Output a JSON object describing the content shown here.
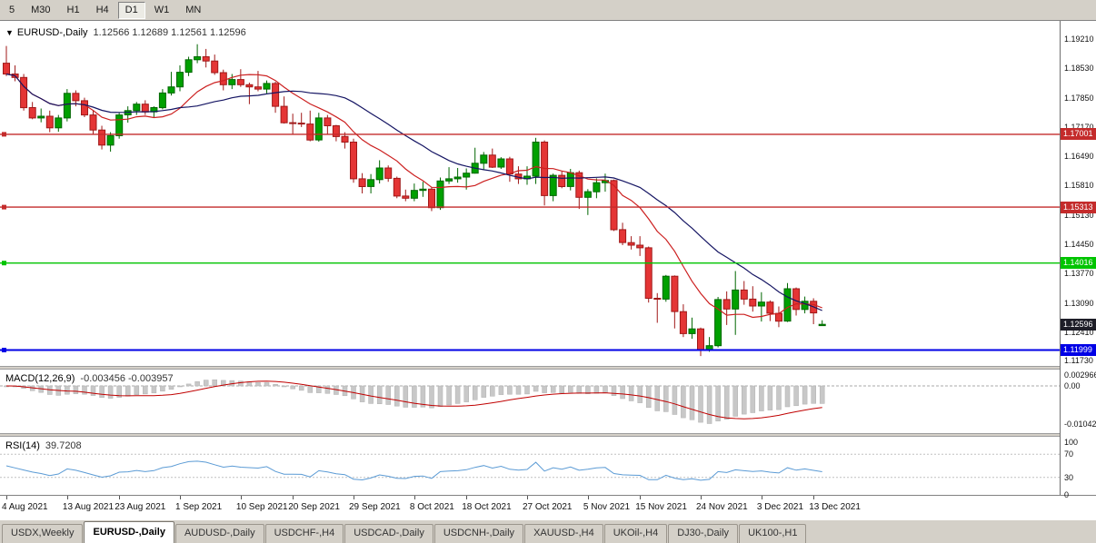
{
  "colors": {
    "up": "#00A000",
    "up_border": "#006600",
    "down": "#E43535",
    "down_border": "#A01818",
    "ma_fast": "#CC2020",
    "ma_slow": "#151563",
    "macd_hist": "#C8C8C8",
    "macd_hist_border": "#B0B0B0",
    "macd_signal": "#C00000",
    "rsi_line": "#5B9BD5",
    "level_red": "#C42B2B",
    "level_green": "#00C400",
    "level_blue": "#0000E6",
    "current_price_bg": "#1E1E28",
    "chrome_bg": "#D4D0C8",
    "chart_bg": "#FFFFFF"
  },
  "toolbar": {
    "timeframes": [
      "5",
      "M30",
      "H1",
      "H4",
      "D1",
      "W1",
      "MN"
    ],
    "active": "D1"
  },
  "chart_header": {
    "collapse_icon": "▼",
    "title": "EURUSD-,Daily",
    "ohlc": "1.12566 1.12689 1.12561 1.12596"
  },
  "chart_data": {
    "type": "candlestick",
    "symbol": "EURUSD-",
    "period": "Daily",
    "open": 1.12566,
    "high": 1.12689,
    "low": 1.12561,
    "close": 1.12596,
    "y_scale": {
      "max": 1.19631,
      "min": 1.11631
    },
    "y_axis_labels": [
      "1.19210",
      "1.18530",
      "1.17850",
      "1.17170",
      "1.16490",
      "1.15810",
      "1.15130",
      "1.14450",
      "1.13770",
      "1.13090",
      "1.12410",
      "1.11730"
    ],
    "x_ticks": [
      {
        "index": 0,
        "label": "4 Aug 2021"
      },
      {
        "index": 7,
        "label": "13 Aug 2021"
      },
      {
        "index": 13,
        "label": "23 Aug 2021"
      },
      {
        "index": 20,
        "label": "1 Sep 2021"
      },
      {
        "index": 27,
        "label": "10 Sep 2021"
      },
      {
        "index": 33,
        "label": "20 Sep 2021"
      },
      {
        "index": 40,
        "label": "29 Sep 2021"
      },
      {
        "index": 47,
        "label": "8 Oct 2021"
      },
      {
        "index": 53,
        "label": "18 Oct 2021"
      },
      {
        "index": 60,
        "label": "27 Oct 2021"
      },
      {
        "index": 67,
        "label": "5 Nov 2021"
      },
      {
        "index": 73,
        "label": "15 Nov 2021"
      },
      {
        "index": 80,
        "label": "24 Nov 2021"
      },
      {
        "index": 87,
        "label": "3 Dec 2021"
      },
      {
        "index": 93,
        "label": "13 Dec 2021"
      }
    ],
    "overlays": {
      "ma_fast_period": 10,
      "ma_slow_period": 21
    },
    "h_levels": [
      {
        "value": 1.17001,
        "label": "1.17001",
        "color_key": "level_red"
      },
      {
        "value": 1.15313,
        "label": "1.15313",
        "color_key": "level_red"
      },
      {
        "value": 1.14016,
        "label": "1.14016",
        "color_key": "level_green"
      },
      {
        "value": 1.11999,
        "label": "1.11999",
        "color_key": "level_blue"
      }
    ],
    "current_price": {
      "value": 1.12596,
      "label": "1.12596"
    },
    "candles": [
      [
        1.1865,
        1.1905,
        1.1835,
        1.184
      ],
      [
        1.184,
        1.186,
        1.1823,
        1.1832
      ],
      [
        1.1832,
        1.184,
        1.1755,
        1.1762
      ],
      [
        1.1762,
        1.1775,
        1.1735,
        1.1738
      ],
      [
        1.1738,
        1.176,
        1.1728,
        1.1742
      ],
      [
        1.1742,
        1.1755,
        1.1705,
        1.1715
      ],
      [
        1.1715,
        1.1745,
        1.1706,
        1.1738
      ],
      [
        1.1738,
        1.1805,
        1.173,
        1.1795
      ],
      [
        1.1795,
        1.1802,
        1.1765,
        1.1778
      ],
      [
        1.1778,
        1.1785,
        1.174,
        1.1745
      ],
      [
        1.1745,
        1.1755,
        1.17,
        1.171
      ],
      [
        1.171,
        1.172,
        1.1665,
        1.1675
      ],
      [
        1.1675,
        1.1705,
        1.166,
        1.1697
      ],
      [
        1.1697,
        1.175,
        1.169,
        1.1745
      ],
      [
        1.1745,
        1.1765,
        1.1727,
        1.1755
      ],
      [
        1.1755,
        1.1775,
        1.1745,
        1.177
      ],
      [
        1.177,
        1.1779,
        1.1745,
        1.1752
      ],
      [
        1.1752,
        1.1765,
        1.174,
        1.1762
      ],
      [
        1.1762,
        1.1805,
        1.1758,
        1.1796
      ],
      [
        1.1796,
        1.1845,
        1.179,
        1.181
      ],
      [
        1.181,
        1.186,
        1.18,
        1.1844
      ],
      [
        1.1844,
        1.188,
        1.1835,
        1.1873
      ],
      [
        1.1873,
        1.1909,
        1.1865,
        1.188
      ],
      [
        1.188,
        1.1898,
        1.1855,
        1.187
      ],
      [
        1.187,
        1.1885,
        1.1838,
        1.1843
      ],
      [
        1.1843,
        1.185,
        1.1802,
        1.1815
      ],
      [
        1.1815,
        1.184,
        1.1805,
        1.1827
      ],
      [
        1.1827,
        1.1851,
        1.181,
        1.1815
      ],
      [
        1.1815,
        1.182,
        1.177,
        1.181
      ],
      [
        1.181,
        1.1847,
        1.18,
        1.1805
      ],
      [
        1.1805,
        1.1825,
        1.1795,
        1.1818
      ],
      [
        1.1818,
        1.1822,
        1.175,
        1.1765
      ],
      [
        1.1765,
        1.1788,
        1.1725,
        1.1727
      ],
      [
        1.1727,
        1.1748,
        1.17,
        1.1726
      ],
      [
        1.1726,
        1.175,
        1.1717,
        1.1724
      ],
      [
        1.1724,
        1.1755,
        1.1684,
        1.1687
      ],
      [
        1.1687,
        1.175,
        1.1683,
        1.1738
      ],
      [
        1.1738,
        1.1745,
        1.17,
        1.172
      ],
      [
        1.172,
        1.1722,
        1.1684,
        1.1695
      ],
      [
        1.1695,
        1.1705,
        1.1667,
        1.1682
      ],
      [
        1.1682,
        1.169,
        1.1588,
        1.1597
      ],
      [
        1.1597,
        1.161,
        1.1563,
        1.1579
      ],
      [
        1.1579,
        1.1608,
        1.1563,
        1.1595
      ],
      [
        1.1595,
        1.164,
        1.1586,
        1.1622
      ],
      [
        1.1622,
        1.1628,
        1.159,
        1.1598
      ],
      [
        1.1598,
        1.1602,
        1.1552,
        1.1557
      ],
      [
        1.1557,
        1.1572,
        1.1545,
        1.1552
      ],
      [
        1.1552,
        1.1586,
        1.1545,
        1.157
      ],
      [
        1.157,
        1.159,
        1.1555,
        1.1573
      ],
      [
        1.1573,
        1.1577,
        1.1522,
        1.153
      ],
      [
        1.153,
        1.16,
        1.1525,
        1.1592
      ],
      [
        1.1592,
        1.1624,
        1.1585,
        1.1597
      ],
      [
        1.1597,
        1.1622,
        1.1588,
        1.1601
      ],
      [
        1.1601,
        1.1621,
        1.1572,
        1.161
      ],
      [
        1.161,
        1.1669,
        1.1609,
        1.1633
      ],
      [
        1.1633,
        1.1659,
        1.1617,
        1.1652
      ],
      [
        1.1652,
        1.1667,
        1.1622,
        1.1624
      ],
      [
        1.1624,
        1.1647,
        1.162,
        1.1643
      ],
      [
        1.1643,
        1.1648,
        1.159,
        1.1608
      ],
      [
        1.1608,
        1.1626,
        1.1585,
        1.1597
      ],
      [
        1.1597,
        1.1626,
        1.1583,
        1.1603
      ],
      [
        1.1603,
        1.1692,
        1.1585,
        1.1682
      ],
      [
        1.1682,
        1.1686,
        1.1535,
        1.1558
      ],
      [
        1.1558,
        1.1609,
        1.1545,
        1.1605
      ],
      [
        1.1605,
        1.1614,
        1.1575,
        1.1579
      ],
      [
        1.1579,
        1.162,
        1.157,
        1.1611
      ],
      [
        1.1611,
        1.1616,
        1.1527,
        1.1554
      ],
      [
        1.1554,
        1.1573,
        1.1513,
        1.1567
      ],
      [
        1.1567,
        1.1598,
        1.1552,
        1.1588
      ],
      [
        1.1588,
        1.1609,
        1.1567,
        1.1593
      ],
      [
        1.1593,
        1.1595,
        1.1476,
        1.1479
      ],
      [
        1.1479,
        1.1495,
        1.1443,
        1.1449
      ],
      [
        1.1449,
        1.1464,
        1.1433,
        1.1443
      ],
      [
        1.1443,
        1.1464,
        1.1418,
        1.1437
      ],
      [
        1.1437,
        1.144,
        1.131,
        1.132
      ],
      [
        1.132,
        1.1332,
        1.1263,
        1.1318
      ],
      [
        1.1318,
        1.1374,
        1.1312,
        1.1371
      ],
      [
        1.1371,
        1.1373,
        1.125,
        1.1289
      ],
      [
        1.1289,
        1.1306,
        1.123,
        1.1238
      ],
      [
        1.1238,
        1.1275,
        1.1226,
        1.1249
      ],
      [
        1.1249,
        1.1252,
        1.1186,
        1.12
      ],
      [
        1.12,
        1.123,
        1.1196,
        1.121
      ],
      [
        1.121,
        1.1323,
        1.1206,
        1.1317
      ],
      [
        1.1317,
        1.1336,
        1.1258,
        1.1295
      ],
      [
        1.1295,
        1.1383,
        1.1235,
        1.1339
      ],
      [
        1.1339,
        1.136,
        1.1305,
        1.1318
      ],
      [
        1.1318,
        1.1348,
        1.1289,
        1.1302
      ],
      [
        1.1302,
        1.1334,
        1.1266,
        1.1311
      ],
      [
        1.1311,
        1.1315,
        1.1267,
        1.1285
      ],
      [
        1.1285,
        1.1301,
        1.1253,
        1.1267
      ],
      [
        1.1267,
        1.1355,
        1.1265,
        1.1342
      ],
      [
        1.1342,
        1.1345,
        1.128,
        1.1294
      ],
      [
        1.1294,
        1.1324,
        1.1285,
        1.1313
      ],
      [
        1.1313,
        1.132,
        1.126,
        1.1286
      ],
      [
        1.12566,
        1.12689,
        1.12561,
        1.12596
      ]
    ]
  },
  "macd_panel": {
    "label": "MACD(12,26,9)",
    "values": "-0.003456 -0.003957",
    "fast": 12,
    "slow": 26,
    "signal": 9,
    "scale": {
      "max": 0.0045,
      "min": -0.013
    },
    "y_labels": [
      {
        "text": "0.002966",
        "value": 0.002966
      },
      {
        "text": "0.00",
        "value": 0
      },
      {
        "text": "-0.01042",
        "value": -0.01042
      }
    ]
  },
  "rsi_panel": {
    "label": "RSI(14)",
    "value": "39.7208",
    "period": 14,
    "levels": [
      70,
      30
    ],
    "scale": {
      "max": 100,
      "min": 0
    },
    "y_labels": [
      {
        "text": "100",
        "value": 100
      },
      {
        "text": "70",
        "value": 70
      },
      {
        "text": "30",
        "value": 30
      },
      {
        "text": "0",
        "value": 0
      }
    ]
  },
  "tabs": {
    "active_index": 1,
    "items": [
      "USDX,Weekly",
      "EURUSD-,Daily",
      "AUDUSD-,Daily",
      "USDCHF-,H4",
      "USDCAD-,Daily",
      "USDCNH-,Daily",
      "XAUUSD-,H4",
      "UKOil-,H4",
      "DJ30-,Daily",
      "UK100-,H1"
    ]
  }
}
